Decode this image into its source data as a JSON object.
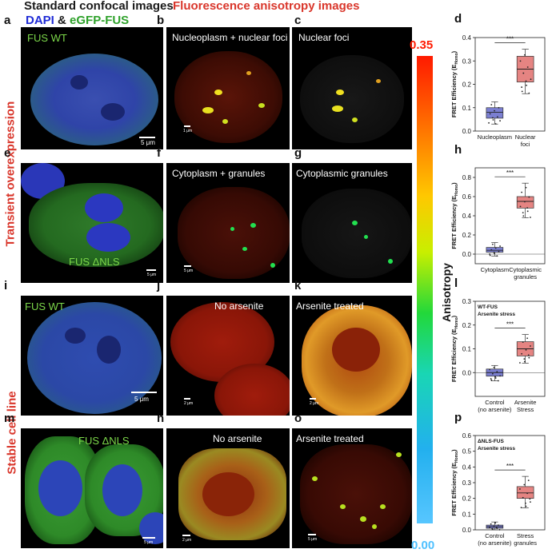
{
  "headers": {
    "standard": "Standard confocal images",
    "dapi": "DAPI",
    "amp": " & ",
    "gfp": "eGFP-FUS",
    "anisotropy": "Fluorescence anisotropy images"
  },
  "side_labels": {
    "top": "Transient overexpression",
    "bottom": "Stable cell line"
  },
  "colorbar": {
    "max": "0.35",
    "min": "0.00",
    "title": "Anisotropy"
  },
  "panels": {
    "a": {
      "letter": "a",
      "label": "FUS WT",
      "scale": "5 μm"
    },
    "b": {
      "letter": "b",
      "label": "Nucleoplasm + nuclear foci",
      "scale": "1 μm"
    },
    "c": {
      "letter": "c",
      "label": "Nuclear foci"
    },
    "e": {
      "letter": "e",
      "label": "FUS ΔNLS",
      "scale": "5 μm"
    },
    "f": {
      "letter": "f",
      "label": "Cytoplasm + granules",
      "scale": "5 μm"
    },
    "g": {
      "letter": "g",
      "label": "Cytoplasmic granules"
    },
    "i": {
      "letter": "i",
      "label": "FUS WT",
      "scale": "5 μm"
    },
    "j": {
      "letter": "j",
      "label": "No arsenite",
      "scale": "2 μm"
    },
    "k": {
      "letter": "k",
      "label": "Arsenite treated",
      "scale": "2 μm"
    },
    "m": {
      "letter": "m",
      "label": "FUS ΔNLS",
      "scale": "5 μm"
    },
    "n": {
      "letter": "n",
      "label": "No arsenite",
      "scale": "2 μm"
    },
    "o": {
      "letter": "o",
      "label": "Arsenite treated",
      "scale": "5 μm"
    }
  },
  "chart_data": [
    {
      "id": "d",
      "letter": "d",
      "type": "box",
      "ylabel": "FRET Efficiency (E",
      "ysub": "Homo",
      "ylabel_end": ")",
      "ylim": [
        0,
        0.4
      ],
      "yticks": [
        "0.0",
        "0.1",
        "0.2",
        "0.3",
        "0.4"
      ],
      "yvals": [
        0,
        0.1,
        0.2,
        0.3,
        0.4
      ],
      "categories": [
        [
          "Nucleoplasm"
        ],
        [
          "Nuclear",
          "foci"
        ]
      ],
      "sig": "***",
      "annot": [],
      "boxes": [
        {
          "q1": 0.055,
          "median": 0.08,
          "q3": 0.1,
          "min": 0.03,
          "max": 0.125,
          "color": "#7b7fd1"
        },
        {
          "q1": 0.21,
          "median": 0.265,
          "q3": 0.32,
          "min": 0.16,
          "max": 0.35,
          "color": "#e58482"
        }
      ]
    },
    {
      "id": "h",
      "letter": "h",
      "type": "box",
      "ylabel": "FRET Efficiency (E",
      "ysub": "Homo",
      "ylabel_end": ")",
      "ylim": [
        -0.1,
        0.9
      ],
      "yticks": [
        "0.0",
        "0.2",
        "0.4",
        "0.6",
        "0.8"
      ],
      "yvals": [
        0,
        0.2,
        0.4,
        0.6,
        0.8
      ],
      "categories": [
        [
          "Cytoplasm"
        ],
        [
          "Cytoplasmic",
          "granules"
        ]
      ],
      "sig": "***",
      "annot": [],
      "boxes": [
        {
          "q1": 0.02,
          "median": 0.04,
          "q3": 0.07,
          "min": -0.02,
          "max": 0.12,
          "color": "#7b7fd1"
        },
        {
          "q1": 0.48,
          "median": 0.55,
          "q3": 0.6,
          "min": 0.38,
          "max": 0.74,
          "color": "#e58482"
        }
      ]
    },
    {
      "id": "l",
      "letter": "l",
      "type": "box",
      "ylabel": "FRET Efficiency (E",
      "ysub": "Homo",
      "ylabel_end": ")",
      "ylim": [
        -0.1,
        0.3
      ],
      "yticks": [
        "0.0",
        "0.1",
        "0.2",
        "0.3"
      ],
      "yvals": [
        0,
        0.1,
        0.2,
        0.3
      ],
      "categories": [
        [
          "Control",
          "(no arsenite)"
        ],
        [
          "Arsenite",
          "Stress"
        ]
      ],
      "sig": "***",
      "annot": [
        "WT-FUS",
        "Arsenite stress"
      ],
      "boxes": [
        {
          "q1": -0.015,
          "median": 0.0,
          "q3": 0.015,
          "min": -0.035,
          "max": 0.03,
          "color": "#7b7fd1"
        },
        {
          "q1": 0.07,
          "median": 0.1,
          "q3": 0.13,
          "min": 0.04,
          "max": 0.16,
          "color": "#e58482"
        }
      ]
    },
    {
      "id": "p",
      "letter": "p",
      "type": "box",
      "ylabel": "FRET Efficiency (E",
      "ysub": "Homo",
      "ylabel_end": ")",
      "ylim": [
        0,
        0.6
      ],
      "yticks": [
        "0.0",
        "0.1",
        "0.2",
        "0.3",
        "0.4",
        "0.5",
        "0.6"
      ],
      "yvals": [
        0,
        0.1,
        0.2,
        0.3,
        0.4,
        0.5,
        0.6
      ],
      "categories": [
        [
          "Control",
          "(no arsenite)"
        ],
        [
          "Stress",
          "granules"
        ]
      ],
      "sig": "***",
      "annot": [
        "ΔNLS-FUS",
        "Arsenite stress"
      ],
      "boxes": [
        {
          "q1": 0.01,
          "median": 0.02,
          "q3": 0.03,
          "min": 0.0,
          "max": 0.05,
          "color": "#7b7fd1"
        },
        {
          "q1": 0.2,
          "median": 0.235,
          "q3": 0.275,
          "min": 0.14,
          "max": 0.34,
          "color": "#e58482"
        }
      ]
    }
  ]
}
